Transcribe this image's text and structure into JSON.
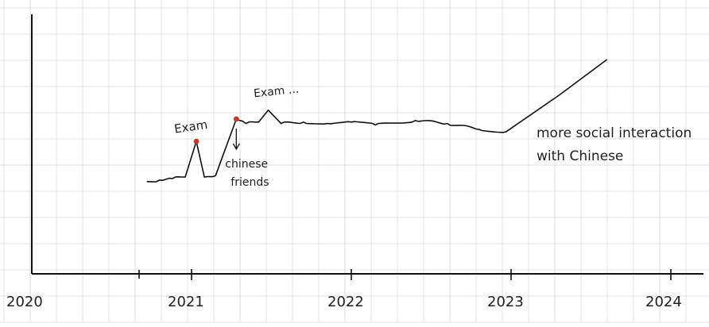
{
  "chart_data": {
    "type": "line",
    "title": "",
    "xlabel": "",
    "ylabel": "",
    "x_ticks": [
      "2020",
      "2021",
      "2022",
      "2023",
      "2024"
    ],
    "grid": true,
    "legend": "none",
    "line_color": "#111111",
    "marker_color": "#c0392b",
    "series": [
      {
        "values": [
          {
            "x": 2020.72,
            "y": 3.1
          },
          {
            "x": 2020.8,
            "y": 3.15
          },
          {
            "x": 2020.88,
            "y": 3.2
          },
          {
            "x": 2020.96,
            "y": 3.25
          },
          {
            "x": 2021.03,
            "y": 4.45
          },
          {
            "x": 2021.08,
            "y": 3.25
          },
          {
            "x": 2021.15,
            "y": 3.3
          },
          {
            "x": 2021.28,
            "y": 5.2
          },
          {
            "x": 2021.34,
            "y": 5.05
          },
          {
            "x": 2021.42,
            "y": 5.1
          },
          {
            "x": 2021.48,
            "y": 5.5
          },
          {
            "x": 2021.56,
            "y": 5.05
          },
          {
            "x": 2021.7,
            "y": 5.1
          },
          {
            "x": 2021.85,
            "y": 5.05
          },
          {
            "x": 2022.0,
            "y": 5.1
          },
          {
            "x": 2022.15,
            "y": 5.0
          },
          {
            "x": 2022.4,
            "y": 5.15
          },
          {
            "x": 2022.6,
            "y": 5.05
          },
          {
            "x": 2022.8,
            "y": 4.85
          },
          {
            "x": 2022.97,
            "y": 4.78
          },
          {
            "x": 2023.3,
            "y": 6.0
          },
          {
            "x": 2023.6,
            "y": 7.2
          }
        ]
      }
    ],
    "highlighted_points": [
      {
        "x": 2021.03,
        "y": 4.45
      },
      {
        "x": 2021.28,
        "y": 5.2
      }
    ],
    "annotations": [
      {
        "id": "exam1",
        "text": "Exam",
        "x": 2021.03,
        "y": 4.45
      },
      {
        "id": "friends",
        "text": "chinese friends",
        "lines": [
          "chinese",
          "friends"
        ],
        "x": 2021.28,
        "y": 5.2
      },
      {
        "id": "exam2",
        "text": "Exam ...",
        "x": 2021.48,
        "y": 5.5
      },
      {
        "id": "social",
        "text": "more social interaction with Chinese",
        "lines": [
          "more social interaction",
          "with Chinese"
        ],
        "x": 2023.0,
        "y": 4.78
      }
    ]
  }
}
